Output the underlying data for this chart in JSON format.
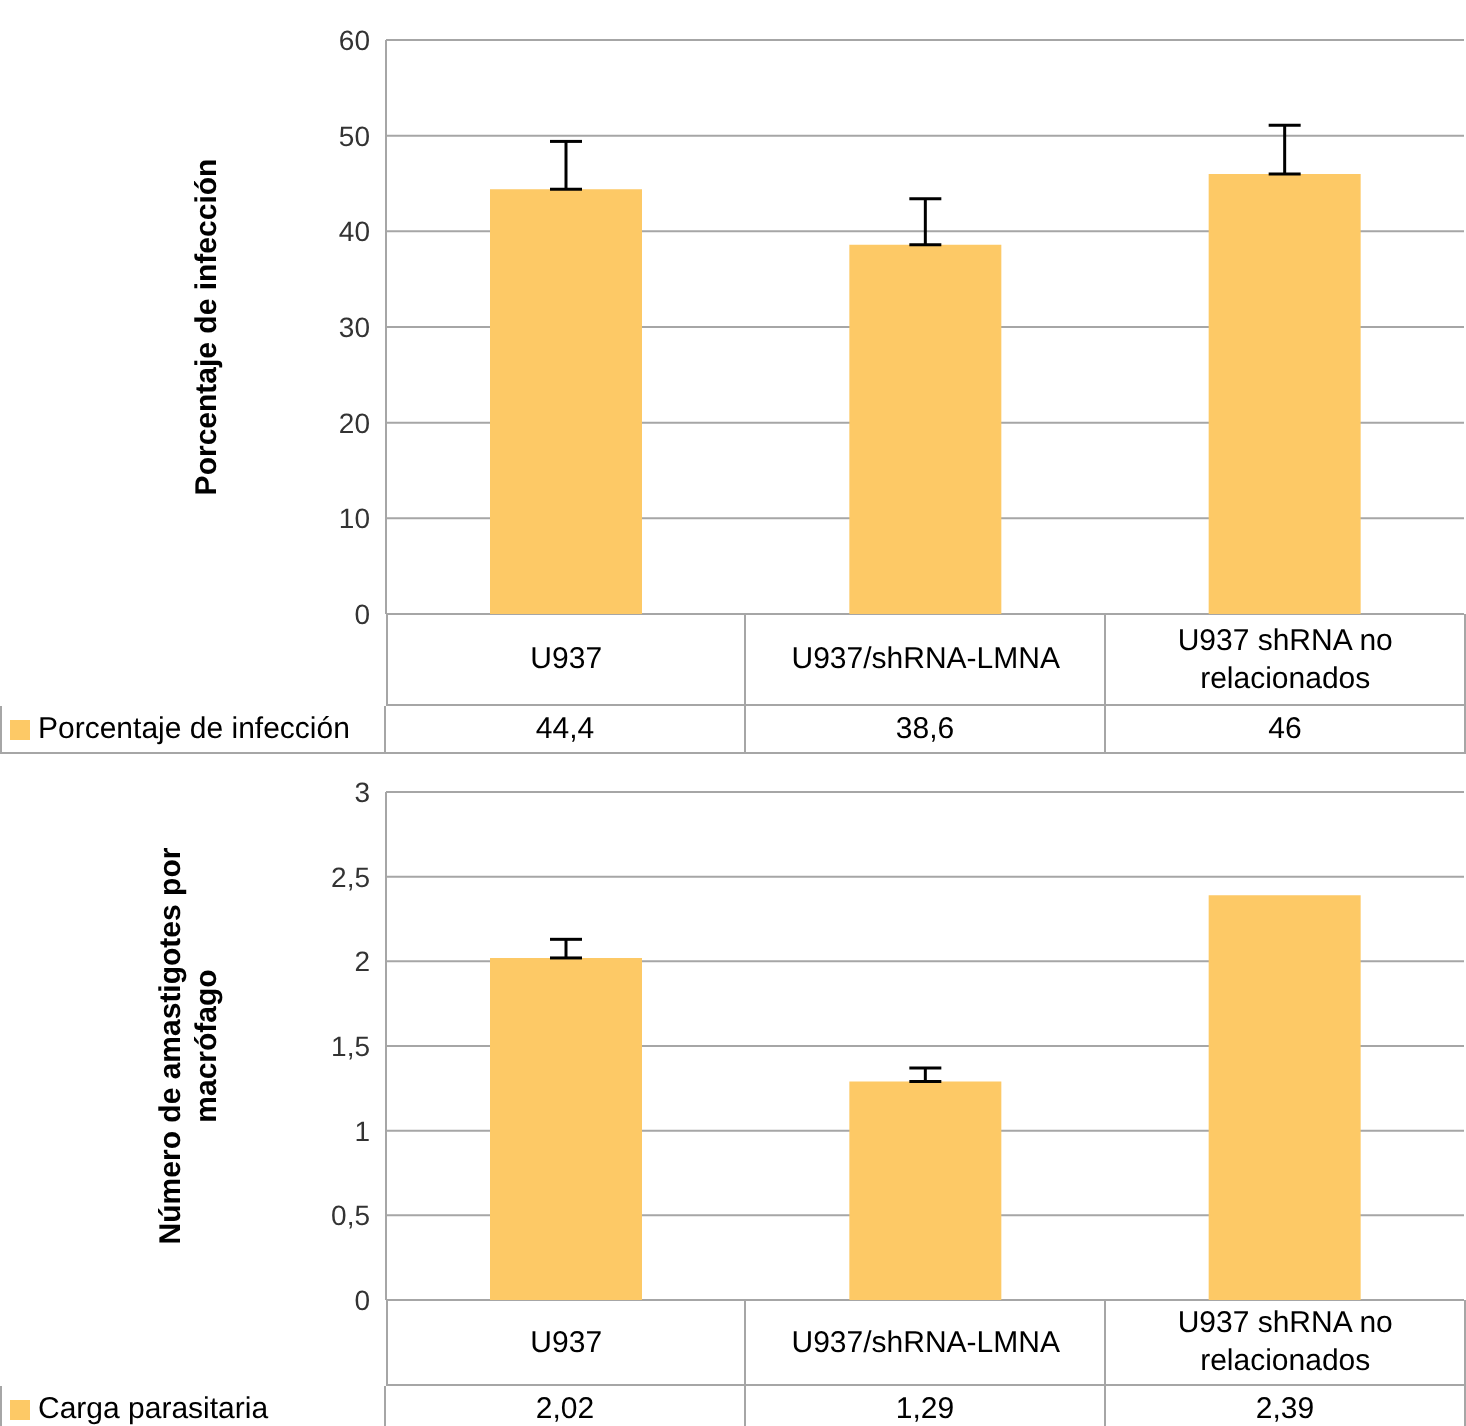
{
  "chart_data": [
    {
      "type": "bar",
      "ylabel": "Porcentaje de infección",
      "categories": [
        "U937",
        "U937/shRNA-LMNA",
        "U937 shRNA no relacionados"
      ],
      "series": [
        {
          "name": "Porcentaje de infección",
          "color": "#fdc966",
          "values": [
            44.4,
            38.6,
            46
          ],
          "value_labels": [
            "44,4",
            "38,6",
            "46"
          ],
          "errors": [
            [
              44.4,
              49.4
            ],
            [
              38.6,
              43.4
            ],
            [
              46,
              51.1
            ]
          ]
        }
      ],
      "ylim": [
        0,
        60
      ],
      "yticks": [
        0,
        10,
        20,
        30,
        40,
        50,
        60
      ],
      "grid": "y",
      "legend": "bottom"
    },
    {
      "type": "bar",
      "ylabel": "Número de amastigotes por macrófago",
      "categories": [
        "U937",
        "U937/shRNA-LMNA",
        "U937 shRNA no relacionados"
      ],
      "series": [
        {
          "name": "Carga parasitaria",
          "color": "#fdc966",
          "values": [
            2.02,
            1.29,
            2.39
          ],
          "value_labels": [
            "2,02",
            "1,29",
            "2,39"
          ],
          "errors": [
            [
              2.02,
              2.13
            ],
            [
              1.29,
              1.37
            ],
            null
          ]
        }
      ],
      "ylim": [
        0,
        3
      ],
      "yticks": [
        0,
        {
          "value": 0.5,
          "label": "0,5"
        },
        1,
        {
          "value": 1.5,
          "label": "1,5"
        },
        2,
        {
          "value": 2.5,
          "label": "2,5"
        },
        3
      ],
      "grid": "y",
      "legend": "bottom"
    }
  ]
}
